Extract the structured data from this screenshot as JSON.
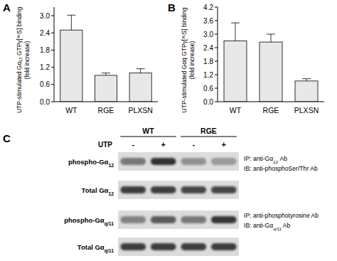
{
  "chart_data": [
    {
      "type": "bar",
      "title": "A",
      "y_label": [
        "UTP-stimulated Gα₁₂ GTPγ[³⁵S] binding",
        "(fold increase)"
      ],
      "categories": [
        "WT",
        "RGE",
        "PLXSN"
      ],
      "values": [
        2.5,
        0.92,
        1.0
      ],
      "errors": [
        0.52,
        0.08,
        0.15
      ],
      "color": "#e8e8e8",
      "ylim": [
        0,
        3.3
      ],
      "yticks": [
        {
          "value": 0,
          "label": "0.0"
        },
        0.6,
        1.2,
        1.8,
        2.4,
        {
          "value": 3,
          "label": "3.0"
        }
      ],
      "grid": false
    },
    {
      "type": "bar",
      "title": "B",
      "y_label": [
        "UTP-stimulated Gαq GTPγ[³⁵S] binding",
        "(fold increase)"
      ],
      "categories": [
        "WT",
        "RGE",
        "PLXSN"
      ],
      "values": [
        2.7,
        2.65,
        0.92
      ],
      "errors": [
        0.8,
        0.35,
        0.1
      ],
      "color": "#e8e8e8",
      "ylim": [
        0,
        4.2
      ],
      "yticks": [
        {
          "value": 0,
          "label": "0.0"
        },
        0.6,
        1.2,
        1.8,
        2.4,
        {
          "value": 3,
          "label": "3.0"
        },
        3.6,
        4.2
      ],
      "grid": false
    }
  ],
  "panel_c": {
    "title": "C",
    "groups": [
      "WT",
      "RGE"
    ],
    "treatment_label": "UTP",
    "treatment": [
      "-",
      "+",
      "-",
      "+"
    ],
    "rows": [
      {
        "label": [
          "phospho-Gα",
          "12"
        ],
        "bands": [
          0.55,
          0.9,
          0.42,
          0.38
        ]
      },
      {
        "label": [
          "Total Gα",
          "12"
        ],
        "bands": [
          0.85,
          0.85,
          0.8,
          0.8
        ]
      },
      {
        "label": [
          "phospho-Gα",
          "q/11"
        ],
        "bands": [
          0.5,
          0.7,
          0.55,
          0.88
        ]
      },
      {
        "label": [
          "Total Gα",
          "q/11"
        ],
        "bands": [
          0.85,
          0.85,
          0.85,
          0.85
        ]
      }
    ],
    "notes": [
      [
        [
          "IP: anti-Gα",
          "12",
          " Ab"
        ],
        [
          "IB: anti-phosphoSer/Thr Ab"
        ]
      ],
      [
        [
          "IP: anti-phosphotyrosine Ab"
        ],
        [
          "IB: anti-Gα",
          "q/11",
          " Ab"
        ]
      ]
    ]
  }
}
